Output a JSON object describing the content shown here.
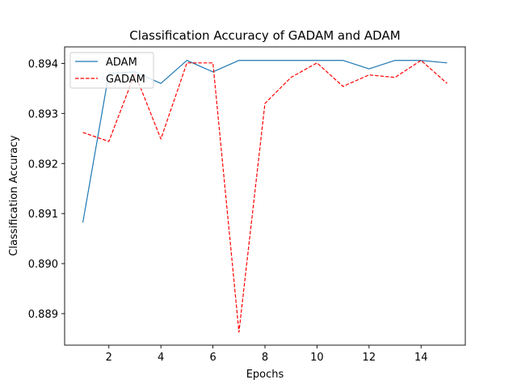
{
  "chart_data": {
    "type": "line",
    "title": "Classification Accuracy of GADAM and ADAM",
    "xlabel": "Epochs",
    "ylabel": "Classification Accuracy",
    "xlim": [
      0.3,
      15.7
    ],
    "ylim": [
      0.88837,
      0.89433
    ],
    "xticks": [
      2,
      4,
      6,
      8,
      10,
      12,
      14
    ],
    "xtick_labels": [
      "2",
      "4",
      "6",
      "8",
      "10",
      "12",
      "14"
    ],
    "yticks": [
      0.889,
      0.89,
      0.891,
      0.892,
      0.893,
      0.894
    ],
    "ytick_labels": [
      "0.889",
      "0.890",
      "0.891",
      "0.892",
      "0.893",
      "0.894"
    ],
    "grid": false,
    "legend_position": "top-left",
    "x": [
      1,
      2,
      3,
      4,
      5,
      6,
      7,
      8,
      9,
      10,
      11,
      12,
      13,
      14,
      15
    ],
    "series": [
      {
        "name": "ADAM",
        "color": "#1f77b4",
        "linestyle": "solid",
        "values": [
          0.89082,
          0.8938,
          0.89383,
          0.8936,
          0.89406,
          0.89383,
          0.89406,
          0.89406,
          0.89406,
          0.89406,
          0.89406,
          0.89389,
          0.89406,
          0.89406,
          0.89401
        ]
      },
      {
        "name": "GADAM",
        "color": "#ff0000",
        "linestyle": "dashed",
        "values": [
          0.89262,
          0.89244,
          0.8938,
          0.89249,
          0.89401,
          0.89401,
          0.88863,
          0.8932,
          0.89372,
          0.89401,
          0.89354,
          0.89377,
          0.89372,
          0.89406,
          0.8936
        ]
      }
    ]
  }
}
